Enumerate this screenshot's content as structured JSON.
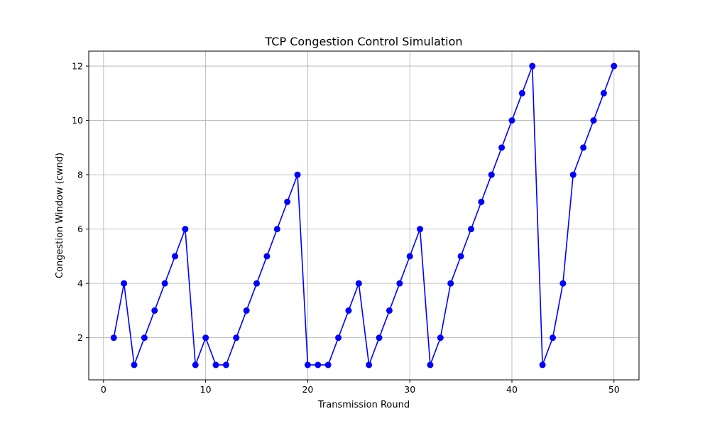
{
  "chart_data": {
    "type": "line",
    "title": "TCP Congestion Control Simulation",
    "xlabel": "Transmission Round",
    "ylabel": "Congestion Window (cwnd)",
    "xlim": [
      -1.45,
      52.45
    ],
    "ylim": [
      0.45,
      12.55
    ],
    "xticks": [
      0,
      10,
      20,
      30,
      40,
      50
    ],
    "yticks": [
      2,
      4,
      6,
      8,
      10,
      12
    ],
    "grid": true,
    "line_color": "#0000ff",
    "marker": "circle",
    "series": [
      {
        "x": [
          1,
          2,
          3,
          4,
          5,
          6,
          7,
          8,
          9,
          10,
          11,
          12,
          13,
          14,
          15,
          16,
          17,
          18,
          19,
          20,
          21,
          22,
          23,
          24,
          25,
          26,
          27,
          28,
          29,
          30,
          31,
          32,
          33,
          34,
          35,
          36,
          37,
          38,
          39,
          40,
          41,
          42,
          43,
          44,
          45,
          46,
          47,
          48,
          49,
          50
        ],
        "values": [
          2,
          4,
          1,
          2,
          3,
          4,
          5,
          6,
          1,
          2,
          1,
          1,
          2,
          3,
          4,
          5,
          6,
          7,
          8,
          1,
          1,
          1,
          2,
          3,
          4,
          1,
          2,
          3,
          4,
          5,
          6,
          1,
          2,
          4,
          5,
          6,
          7,
          8,
          9,
          10,
          11,
          12,
          1,
          2,
          4,
          8,
          9,
          10,
          11,
          12
        ]
      }
    ]
  }
}
